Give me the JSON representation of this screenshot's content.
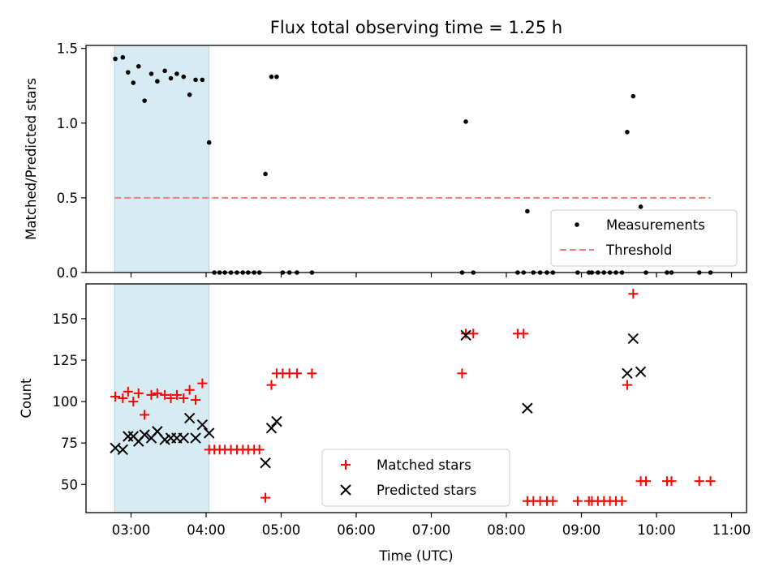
{
  "chart_data": [
    {
      "id": "ratio",
      "type": "scatter",
      "title": "Flux total observing time = 1.25 h",
      "xlabel": "",
      "ylabel": "Matched/Predicted stars",
      "xlim_hours": [
        2.4,
        11.2
      ],
      "ylim": [
        0,
        1.52
      ],
      "yticks": [
        0.0,
        0.5,
        1.0,
        1.5
      ],
      "ytick_labels": [
        "0.0",
        "0.5",
        "1.0",
        "1.5"
      ],
      "highlight_span_hours": [
        2.78,
        4.04
      ],
      "highlight_color": "#add8e6",
      "threshold": {
        "value": 0.5,
        "x_range_hours": [
          2.78,
          10.72
        ],
        "color": "#ff7b7b",
        "label": "Threshold"
      },
      "legend": {
        "placement": "lower-right",
        "entries": [
          "Measurements",
          "Threshold"
        ]
      },
      "series": [
        {
          "name": "Measurements",
          "color": "#000000",
          "marker": "dot",
          "x_hours": [
            2.79,
            2.89,
            2.96,
            3.03,
            3.1,
            3.18,
            3.27,
            3.35,
            3.45,
            3.53,
            3.61,
            3.7,
            3.78,
            3.86,
            3.95,
            4.04,
            4.11,
            4.18,
            4.25,
            4.33,
            4.41,
            4.49,
            4.56,
            4.64,
            4.71,
            4.79,
            4.87,
            4.94,
            5.02,
            5.11,
            5.21,
            5.41,
            7.41,
            7.46,
            7.56,
            8.15,
            8.23,
            8.28,
            8.36,
            8.45,
            8.54,
            8.62,
            8.95,
            9.1,
            9.14,
            9.22,
            9.3,
            9.38,
            9.46,
            9.54,
            9.61,
            9.69,
            9.79,
            9.86,
            10.14,
            10.2,
            10.57,
            10.72
          ],
          "values": [
            1.43,
            1.44,
            1.34,
            1.27,
            1.38,
            1.15,
            1.33,
            1.28,
            1.35,
            1.3,
            1.33,
            1.31,
            1.19,
            1.29,
            1.29,
            0.87,
            0,
            0,
            0,
            0,
            0,
            0,
            0,
            0,
            0,
            0.66,
            1.31,
            1.31,
            0,
            0,
            0,
            0,
            0,
            1.01,
            0,
            0,
            0,
            0.41,
            0,
            0,
            0,
            0,
            0,
            0,
            0,
            0,
            0,
            0,
            0,
            0,
            0.94,
            1.18,
            0.44,
            0,
            0,
            0,
            0,
            0
          ]
        }
      ]
    },
    {
      "id": "counts",
      "type": "scatter",
      "title": "",
      "xlabel": "Time (UTC)",
      "ylabel": "Count",
      "xlim_hours": [
        2.4,
        11.2
      ],
      "ylim": [
        33,
        171
      ],
      "yticks": [
        50,
        75,
        100,
        125,
        150
      ],
      "ytick_labels": [
        "50",
        "75",
        "100",
        "125",
        "150"
      ],
      "xticks_hours": [
        3,
        4,
        5,
        6,
        7,
        8,
        9,
        10,
        11
      ],
      "xtick_labels": [
        "03:00",
        "04:00",
        "05:00",
        "06:00",
        "07:00",
        "08:00",
        "09:00",
        "10:00",
        "11:00"
      ],
      "highlight_span_hours": [
        2.78,
        4.04
      ],
      "highlight_color": "#add8e6",
      "legend": {
        "placement": "lower-center",
        "entries": [
          "Matched stars",
          "Predicted stars"
        ]
      },
      "series": [
        {
          "name": "Matched stars",
          "color": "#ff0000",
          "marker": "plus",
          "x_hours": [
            2.79,
            2.89,
            2.96,
            3.03,
            3.1,
            3.18,
            3.27,
            3.35,
            3.45,
            3.53,
            3.61,
            3.7,
            3.78,
            3.86,
            3.95,
            4.04,
            4.11,
            4.18,
            4.25,
            4.33,
            4.41,
            4.49,
            4.56,
            4.64,
            4.71,
            4.79,
            4.87,
            4.94,
            5.02,
            5.11,
            5.21,
            5.41,
            7.41,
            7.46,
            7.56,
            8.15,
            8.23,
            8.28,
            8.36,
            8.45,
            8.54,
            8.62,
            8.95,
            9.1,
            9.14,
            9.22,
            9.3,
            9.38,
            9.46,
            9.54,
            9.61,
            9.69,
            9.79,
            9.86,
            10.14,
            10.2,
            10.57,
            10.72
          ],
          "values": [
            103,
            102,
            106,
            100,
            105,
            92,
            104,
            105,
            104,
            102,
            104,
            102,
            107,
            101,
            111,
            71,
            71,
            71,
            71,
            71,
            71,
            71,
            71,
            71,
            71,
            42,
            110,
            117,
            117,
            117,
            117,
            117,
            117,
            141,
            141,
            141,
            141,
            40,
            40,
            40,
            40,
            40,
            40,
            40,
            40,
            40,
            40,
            40,
            40,
            40,
            110,
            165,
            52,
            52,
            52,
            52,
            52,
            52
          ]
        },
        {
          "name": "Predicted stars",
          "color": "#000000",
          "marker": "x",
          "x_hours": [
            2.79,
            2.89,
            2.96,
            3.03,
            3.1,
            3.18,
            3.27,
            3.35,
            3.45,
            3.53,
            3.61,
            3.7,
            3.78,
            3.86,
            3.95,
            4.04,
            4.79,
            4.87,
            4.94,
            7.46,
            8.28,
            9.61,
            9.69,
            9.79
          ],
          "values": [
            72,
            71,
            79,
            79,
            76,
            80,
            78,
            82,
            77,
            78,
            78,
            78,
            90,
            78,
            86,
            81,
            63,
            84,
            88,
            140,
            96,
            117,
            138,
            118
          ]
        }
      ]
    }
  ]
}
